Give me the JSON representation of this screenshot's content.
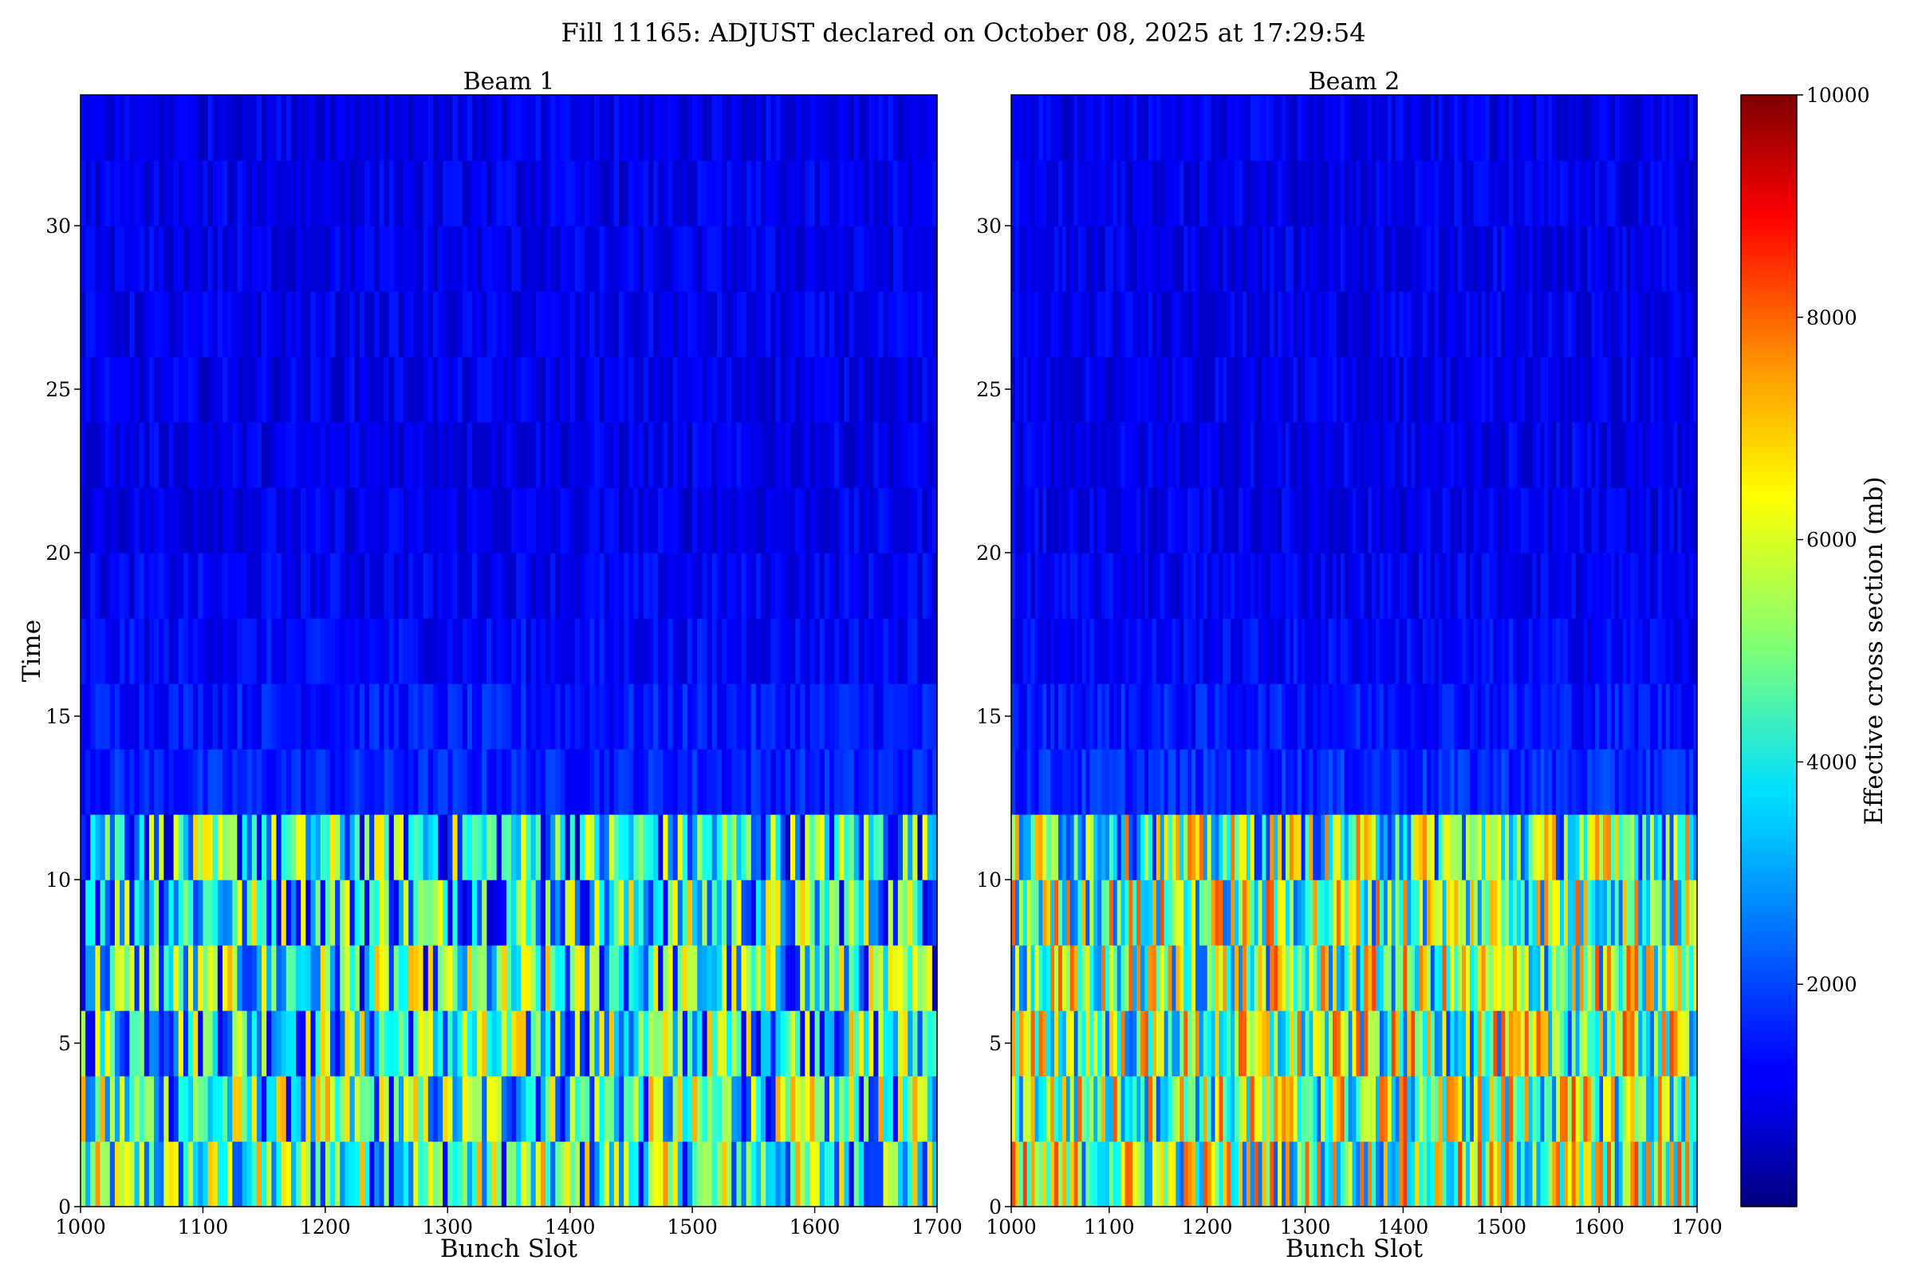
{
  "figure": {
    "suptitle": "Fill 11165: ADJUST declared on October 08, 2025 at 17:29:54"
  },
  "chart_data": [
    {
      "type": "heatmap",
      "title": "Beam 1",
      "xlabel": "Bunch Slot",
      "ylabel": "Time",
      "xlim": [
        1000,
        1700
      ],
      "ylim": [
        0,
        34
      ],
      "xticks": [
        1000,
        1100,
        1200,
        1300,
        1400,
        1500,
        1600,
        1700
      ],
      "yticks": [
        0,
        5,
        10,
        15,
        20,
        25,
        30
      ],
      "colormap": "jet",
      "vmin": 0,
      "vmax": 10000,
      "rows": [
        {
          "t": 1,
          "mean": 4200
        },
        {
          "t": 3,
          "mean": 4100
        },
        {
          "t": 5,
          "mean": 4000
        },
        {
          "t": 7,
          "mean": 3900
        },
        {
          "t": 9,
          "mean": 3900
        },
        {
          "t": 11,
          "mean": 3600
        },
        {
          "t": 13,
          "mean": 1500
        },
        {
          "t": 15,
          "mean": 1400
        },
        {
          "t": 17,
          "mean": 1200
        },
        {
          "t": 19,
          "mean": 1100
        },
        {
          "t": 21,
          "mean": 1000
        },
        {
          "t": 23,
          "mean": 1000
        },
        {
          "t": 25,
          "mean": 1000
        },
        {
          "t": 27,
          "mean": 1000
        },
        {
          "t": 29,
          "mean": 1000
        },
        {
          "t": 31,
          "mean": 1000
        },
        {
          "t": 33,
          "mean": 1000
        }
      ]
    },
    {
      "type": "heatmap",
      "title": "Beam 2",
      "xlabel": "Bunch Slot",
      "ylabel": "",
      "xlim": [
        1000,
        1700
      ],
      "ylim": [
        0,
        34
      ],
      "xticks": [
        1000,
        1100,
        1200,
        1300,
        1400,
        1500,
        1600,
        1700
      ],
      "yticks": [
        0,
        5,
        10,
        15,
        20,
        25,
        30
      ],
      "colormap": "jet",
      "vmin": 0,
      "vmax": 10000,
      "rows": [
        {
          "t": 1,
          "mean": 5200
        },
        {
          "t": 3,
          "mean": 5100
        },
        {
          "t": 5,
          "mean": 5000
        },
        {
          "t": 7,
          "mean": 5000
        },
        {
          "t": 9,
          "mean": 5100
        },
        {
          "t": 11,
          "mean": 4600
        },
        {
          "t": 13,
          "mean": 1600
        },
        {
          "t": 15,
          "mean": 1400
        },
        {
          "t": 17,
          "mean": 1200
        },
        {
          "t": 19,
          "mean": 1100
        },
        {
          "t": 21,
          "mean": 1000
        },
        {
          "t": 23,
          "mean": 1000
        },
        {
          "t": 25,
          "mean": 1000
        },
        {
          "t": 27,
          "mean": 1000
        },
        {
          "t": 29,
          "mean": 1000
        },
        {
          "t": 31,
          "mean": 1000
        },
        {
          "t": 33,
          "mean": 1000
        }
      ]
    }
  ],
  "colorbar": {
    "label": "Effective cross section (mb)",
    "min": 0,
    "max": 10000,
    "ticks": [
      2000,
      4000,
      6000,
      8000,
      10000
    ],
    "colormap": "jet"
  }
}
